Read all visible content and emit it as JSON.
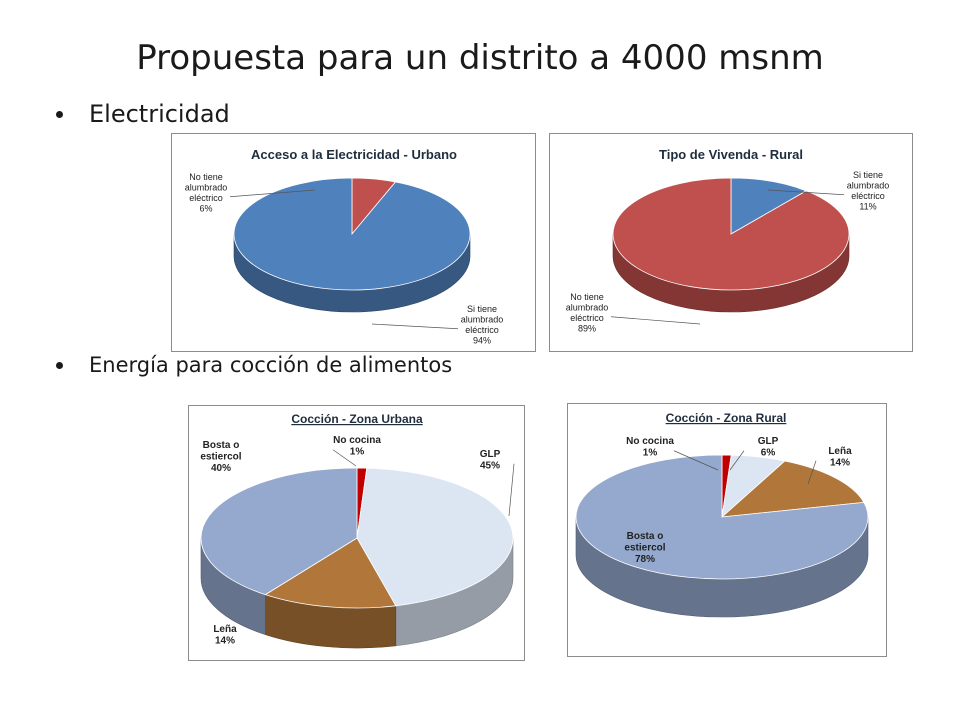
{
  "slide": {
    "title": "Propuesta para un distrito a 4000 msnm",
    "bullets": [
      "Electricidad",
      "Energía para cocción de alimentos"
    ]
  },
  "colors": {
    "blue": "#4f81bd",
    "red": "#c0504d",
    "dark_red": "#c00000",
    "light_blue": "#dce6f2",
    "wood": "#b0763a",
    "grey_blue": "#95a9cf"
  },
  "chart_data": [
    {
      "type": "pie",
      "title": "Acceso a la Electricidad  - Urbano",
      "slices": [
        {
          "label_lines": [
            "No tiene",
            "alumbrado",
            "eléctrico"
          ],
          "pct_text": "6%",
          "value": 6,
          "color": "#c0504d"
        },
        {
          "label_lines": [
            "Si tiene",
            "alumbrado",
            "eléctrico"
          ],
          "pct_text": "94%",
          "value": 94,
          "color": "#4f81bd"
        }
      ]
    },
    {
      "type": "pie",
      "title": "Tipo de Vivenda - Rural",
      "slices": [
        {
          "label_lines": [
            "Si tiene",
            "alumbrado",
            "eléctrico"
          ],
          "pct_text": "11%",
          "value": 11,
          "color": "#4f81bd"
        },
        {
          "label_lines": [
            "No tiene",
            "alumbrado",
            "eléctrico"
          ],
          "pct_text": "89%",
          "value": 89,
          "color": "#c0504d"
        }
      ]
    },
    {
      "type": "pie",
      "title": "Cocción - Zona Urbana",
      "slices": [
        {
          "label_lines": [
            "No cocina"
          ],
          "pct_text": "1%",
          "value": 1,
          "color": "#c00000"
        },
        {
          "label_lines": [
            "GLP"
          ],
          "pct_text": "45%",
          "value": 45,
          "color": "#dce6f2"
        },
        {
          "label_lines": [
            "Leña"
          ],
          "pct_text": "14%",
          "value": 14,
          "color": "#b0763a"
        },
        {
          "label_lines": [
            "Bosta o",
            "estiercol"
          ],
          "pct_text": "40%",
          "value": 40,
          "color": "#95a9cf"
        }
      ]
    },
    {
      "type": "pie",
      "title": "Cocción - Zona Rural",
      "slices": [
        {
          "label_lines": [
            "No cocina"
          ],
          "pct_text": "1%",
          "value": 1,
          "color": "#c00000"
        },
        {
          "label_lines": [
            "GLP"
          ],
          "pct_text": "6%",
          "value": 6,
          "color": "#dce6f2"
        },
        {
          "label_lines": [
            "Leña"
          ],
          "pct_text": "14%",
          "value": 14,
          "color": "#b0763a"
        },
        {
          "label_lines": [
            "Bosta o",
            "estiercol"
          ],
          "pct_text": "78%",
          "value": 78,
          "color": "#95a9cf"
        }
      ]
    }
  ]
}
